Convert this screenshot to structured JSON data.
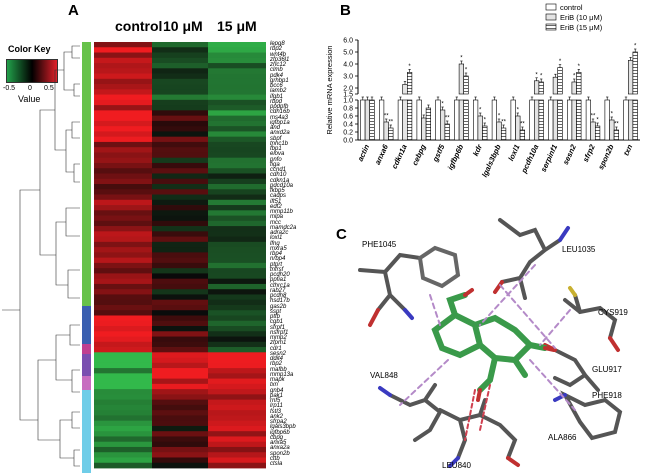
{
  "panel_a": {
    "letter": "A",
    "columns": [
      "control",
      "10 μM",
      "15 μM"
    ],
    "color_key": {
      "title": "Color Key",
      "ticks": [
        "-0.5",
        "0",
        "0.5"
      ],
      "value_label": "Value",
      "colors": [
        "#22a04a",
        "#000000",
        "#e0202a"
      ]
    },
    "genes": [
      "lepg8",
      "rbp2",
      "wnt4b",
      "zfp36l1",
      "zrlc12",
      "clmb",
      "pdk4",
      "grhbp1",
      "bcc6",
      "lamb2",
      "ifgb1",
      "rbpd",
      "ppdpfb",
      "cdh16b",
      "ms4a3",
      "igfbp1a",
      "and",
      "anxd2a",
      "sbpf",
      "tnnc1b",
      "fbp1",
      "elova",
      "pnfo",
      "figa",
      "ccnd1",
      "cdh10",
      "cdkn1a",
      "pdcd10a",
      "fkbp5",
      "cadps",
      "ift51",
      "edf2",
      "mmp11b",
      "mlpa",
      "mcc",
      "mamdc2a",
      "adra2c",
      "loxl1",
      "lfng",
      "mxra5",
      "rbp4",
      "nrbp4",
      "ptprt",
      "tnfrsf",
      "pcdh20",
      "ppfia1",
      "cthrc1a",
      "rab27",
      "pcdh8",
      "hsd17b",
      "gas2b",
      "sspt",
      "ptfb",
      "cgb1",
      "sfrpf1",
      "nsfrpf1",
      "mmp2",
      "zfpm1",
      "cdr1",
      "sesn2",
      "ddit4",
      "rbp2",
      "mafbb",
      "mmp13a",
      "mapk",
      "txn",
      "gnb4",
      "pak1",
      "rnf5",
      "lrp11",
      "fstl3",
      "ank2",
      "sfrpa2",
      "lgals3bpb",
      "igfbp6b",
      "cbpg",
      "anxa5",
      "anxa2a",
      "spon2b",
      "cttb",
      "ctsla"
    ]
  },
  "panel_b": {
    "letter": "B",
    "chart_data": {
      "type": "bar",
      "ylabel": "Relative mRNA expression",
      "y_ticks_upper": [
        "6.0",
        "5.0",
        "4.0",
        "3.0",
        "2.0",
        "1.5"
      ],
      "y_ticks_lower": [
        "1.0",
        "0.8",
        "0.6",
        "0.4",
        "0.2",
        "0.0"
      ],
      "categories": [
        "actin",
        "anxa6",
        "cdkn1a",
        "cebpg",
        "gstf5",
        "igfbp6b",
        "kdr",
        "lgals3bpb",
        "loxl1",
        "pcdh10a",
        "serpinf1",
        "sesn2",
        "sfrp2",
        "spon2b",
        "txn"
      ],
      "series": [
        {
          "name": "control",
          "values": [
            1.0,
            1.0,
            1.0,
            1.0,
            1.0,
            1.0,
            1.0,
            1.0,
            1.0,
            1.0,
            1.0,
            1.0,
            1.0,
            1.0,
            1.0
          ]
        },
        {
          "name": "EriB (10 μM)",
          "values": [
            1.0,
            0.45,
            2.3,
            0.55,
            0.75,
            4.0,
            0.6,
            0.45,
            0.6,
            2.6,
            2.9,
            2.5,
            0.45,
            0.5,
            4.3
          ]
        },
        {
          "name": "EriB (15 μM)",
          "values": [
            1.0,
            0.3,
            3.3,
            0.8,
            0.4,
            3.0,
            0.35,
            0.3,
            0.25,
            2.5,
            3.7,
            3.3,
            0.35,
            0.25,
            5.0
          ]
        }
      ],
      "sig": {
        "s10": [
          "",
          "**",
          "",
          "",
          "*",
          "*",
          "*",
          "*",
          "*",
          "*",
          "",
          "*",
          "**",
          "*",
          ""
        ],
        "s15": [
          "",
          "**",
          "*",
          "",
          "**",
          "*",
          "*",
          "**",
          "**",
          "*",
          "*",
          "*",
          "*",
          "**",
          "*"
        ]
      },
      "legend_position": "top-right"
    }
  },
  "panel_c": {
    "letter": "C",
    "residues": [
      "PHE1045",
      "LEU1035",
      "CYS919",
      "GLU917",
      "VAL848",
      "PHE918",
      "ALA866",
      "LEU840"
    ]
  }
}
